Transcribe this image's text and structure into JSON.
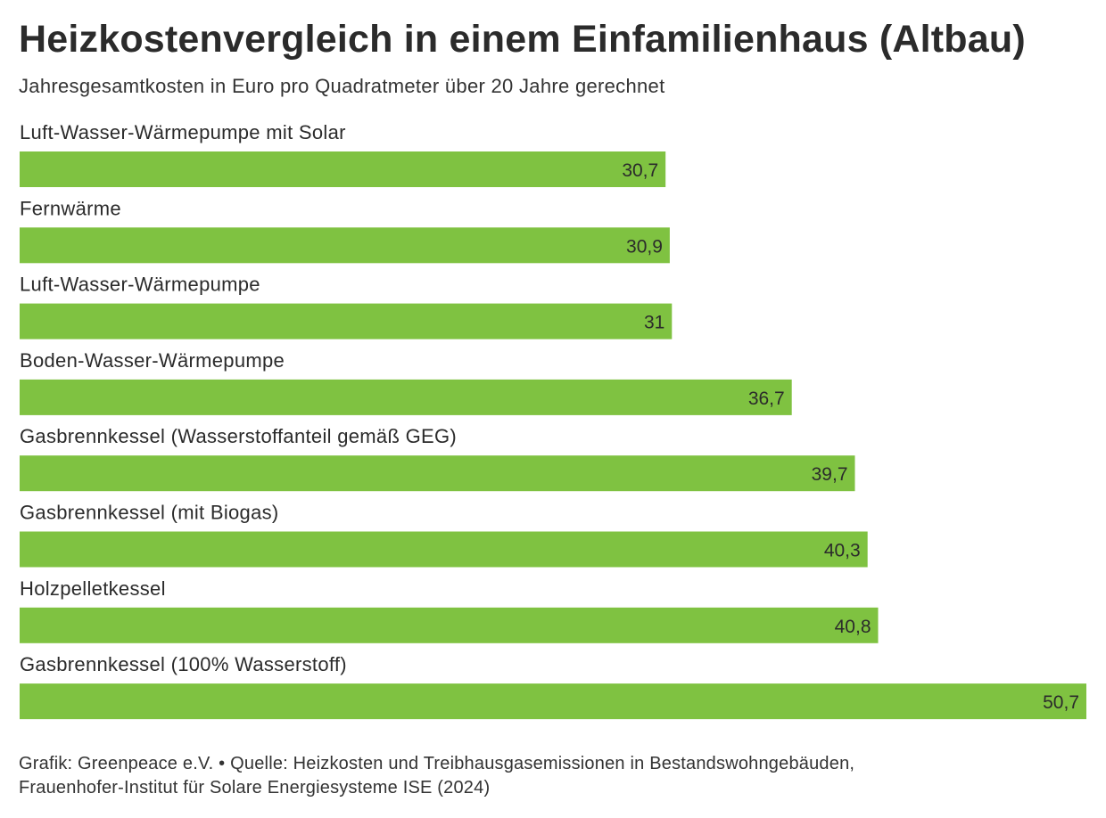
{
  "chart_data": {
    "type": "bar",
    "orientation": "horizontal",
    "title": "Heizkostenvergleich in einem Einfamilienhaus (Altbau)",
    "subtitle": "Jahresgesamtkosten in Euro pro Quadratmeter über 20 Jahre gerechnet",
    "categories": [
      "Luft-Wasser-Wärmepumpe mit Solar",
      "Fernwärme",
      "Luft-Wasser-Wärmepumpe",
      "Boden-Wasser-Wärmepumpe",
      "Gasbrennkessel (Wasserstoffanteil gemäß GEG)",
      "Gasbrennkessel (mit Biogas)",
      "Holzpelletkessel",
      "Gasbrennkessel (100% Wasserstoff)"
    ],
    "values": [
      30.7,
      30.9,
      31,
      36.7,
      39.7,
      40.3,
      40.8,
      50.7
    ],
    "value_labels": [
      "30,7",
      "30,9",
      "31",
      "36,7",
      "39,7",
      "40,3",
      "40,8",
      "50,7"
    ],
    "xlim": [
      0,
      50.7
    ],
    "xlabel": "",
    "ylabel": "",
    "grid": false,
    "bar_color": "#7fc241"
  },
  "footer": {
    "line1": "Grafik: Greenpeace e.V. • Quelle: Heizkosten und Treibhausgasemissionen in Bestandswohngebäuden,",
    "line2": "Frauenhofer-Institut für Solare Energiesysteme ISE (2024)"
  },
  "colors": {
    "text": "#2b2b2b",
    "bar": "#7fc241"
  }
}
